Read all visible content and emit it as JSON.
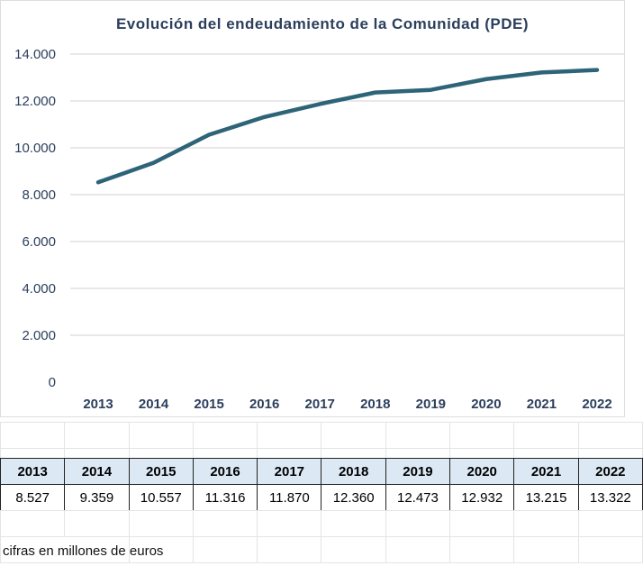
{
  "chart_data": {
    "type": "line",
    "title": "Evolución del endeudamiento de la Comunidad (PDE)",
    "categories": [
      "2013",
      "2014",
      "2015",
      "2016",
      "2017",
      "2018",
      "2019",
      "2020",
      "2021",
      "2022"
    ],
    "values": [
      8527,
      9359,
      10557,
      11316,
      11870,
      12360,
      12473,
      12932,
      13215,
      13322
    ],
    "yticks": [
      "0",
      "2.000",
      "4.000",
      "6.000",
      "8.000",
      "10.000",
      "12.000",
      "14.000"
    ],
    "ylim": [
      0,
      14000
    ],
    "grid": true,
    "line_color": "#2e6478",
    "text_color": "#2b3f5c"
  },
  "table": {
    "headers": [
      "2013",
      "2014",
      "2015",
      "2016",
      "2017",
      "2018",
      "2019",
      "2020",
      "2021",
      "2022"
    ],
    "values": [
      "8.527",
      "9.359",
      "10.557",
      "11.316",
      "11.870",
      "12.360",
      "12.473",
      "12.932",
      "13.215",
      "13.322"
    ],
    "header_bg": "#dce9f5"
  },
  "footnote": "cifras en millones de euros"
}
